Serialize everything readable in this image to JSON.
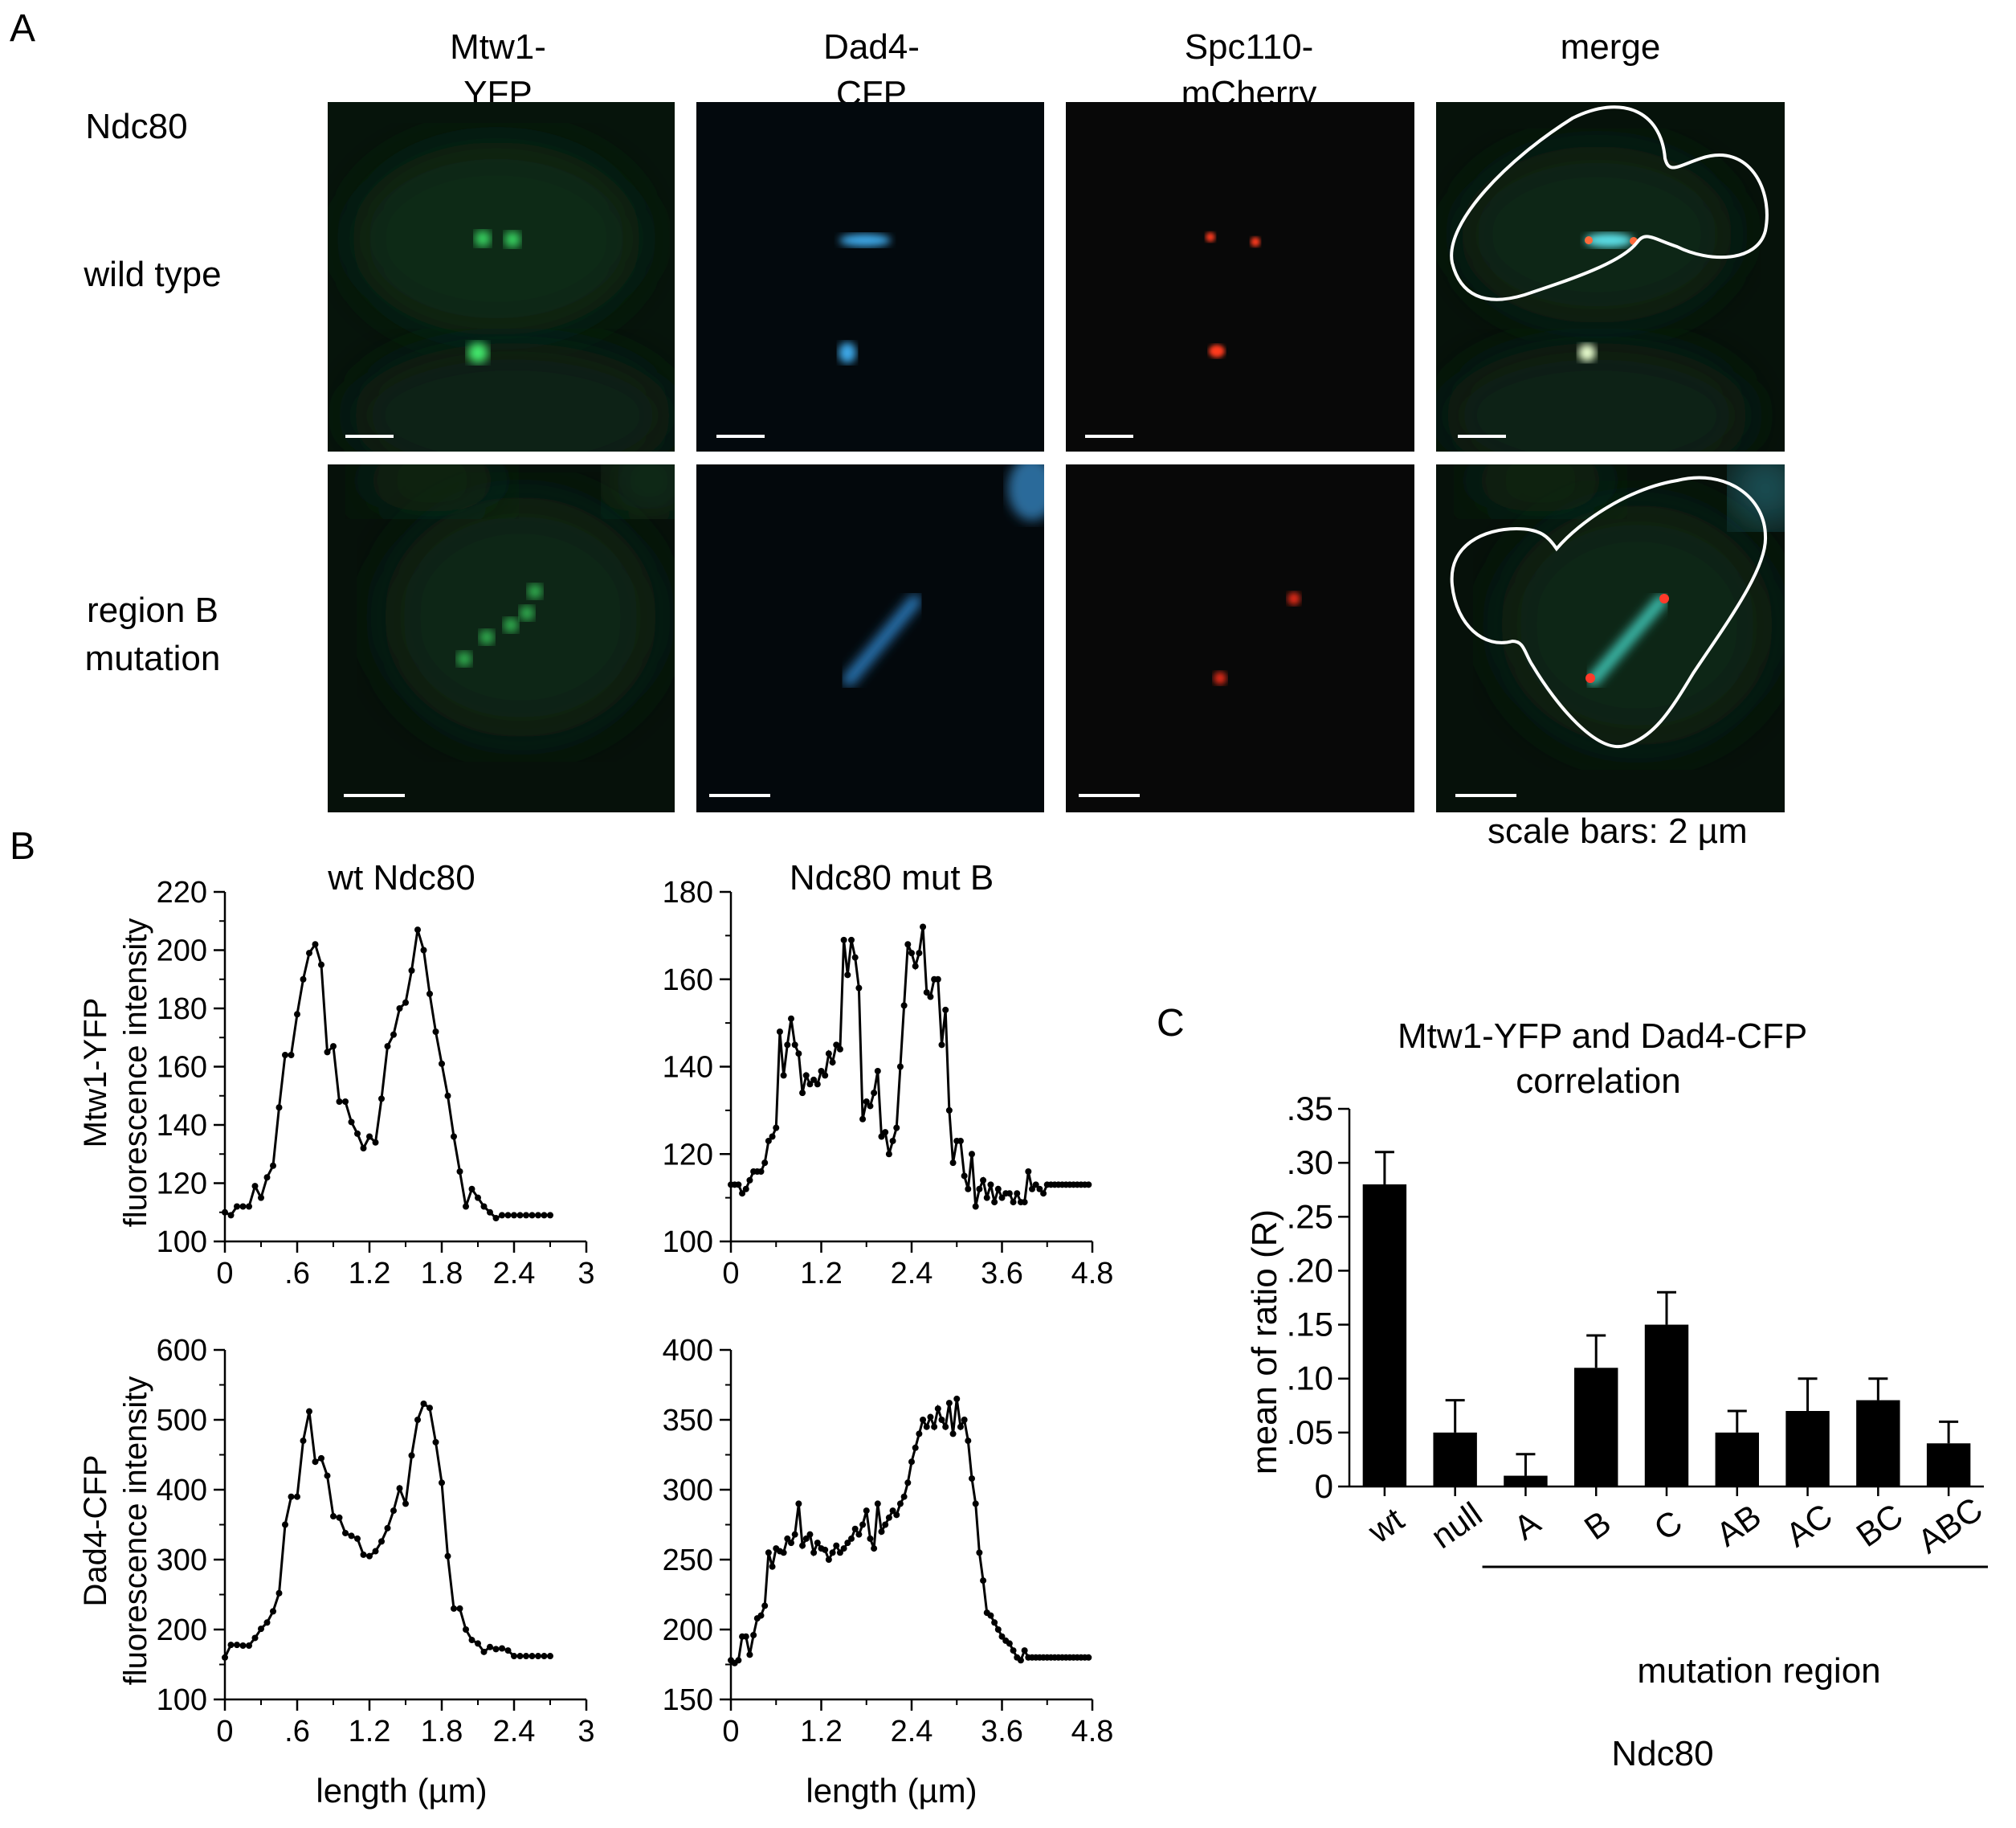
{
  "panel_a": {
    "letter": "A",
    "columns": [
      {
        "line1": "Mtw1-",
        "line2": "YFP"
      },
      {
        "line1": "Dad4-",
        "line2": "CFP"
      },
      {
        "line1": "Spc110-",
        "line2": "mCherry"
      },
      {
        "line1": "merge",
        "line2": ""
      }
    ],
    "row_group": "Ndc80",
    "rows": [
      {
        "line1": "wild type",
        "line2": ""
      },
      {
        "line1": "region B",
        "line2": "mutation"
      }
    ],
    "scale_note": "scale bars: 2 µm"
  },
  "panel_b": {
    "letter": "B",
    "col_titles": [
      "wt Ndc80",
      "Ndc80 mut B"
    ],
    "row_labels": [
      {
        "line1": "Mtw1-YFP",
        "line2": "fluorescence intensity"
      },
      {
        "line1": "Dad4-CFP",
        "line2": "fluorescence intensity"
      }
    ],
    "xlabel": "length (µm)"
  },
  "panel_c": {
    "letter": "C",
    "title_line1": "Mtw1-YFP and Dad4-CFP",
    "title_line2": "correlation",
    "ylabel": "mean of ratio (R)",
    "group_label": "mutation region",
    "footer": "Ndc80"
  },
  "chart_data": [
    {
      "type": "line",
      "title": "wt Ndc80",
      "ylabel": "Mtw1-YFP fluorescence intensity",
      "xlabel": "",
      "xlim": [
        0,
        3
      ],
      "ylim": [
        100,
        220
      ],
      "x_ticks": [
        0,
        0.6,
        1.2,
        1.8,
        2.4,
        3
      ],
      "x_tick_labels": [
        "0",
        ".6",
        "1.2",
        "1.8",
        "2.4",
        "3"
      ],
      "y_ticks": [
        100,
        120,
        140,
        160,
        180,
        200,
        220
      ],
      "y_tick_labels": [
        "100",
        "120",
        "140",
        "160",
        "180",
        "200",
        "220"
      ],
      "x": [
        0,
        0.05,
        0.1,
        0.15,
        0.2,
        0.25,
        0.3,
        0.35,
        0.4,
        0.45,
        0.5,
        0.55,
        0.6,
        0.65,
        0.7,
        0.75,
        0.8,
        0.85,
        0.9,
        0.95,
        1.0,
        1.05,
        1.1,
        1.15,
        1.2,
        1.25,
        1.3,
        1.35,
        1.4,
        1.45,
        1.5,
        1.55,
        1.6,
        1.65,
        1.7,
        1.75,
        1.8,
        1.85,
        1.9,
        1.95,
        2.0,
        2.05,
        2.1,
        2.15,
        2.2,
        2.25,
        2.3,
        2.35,
        2.4,
        2.45,
        2.5,
        2.55,
        2.6,
        2.65,
        2.7
      ],
      "y": [
        110,
        109,
        112,
        112,
        112,
        119,
        115,
        122,
        126,
        146,
        164,
        164,
        178,
        190,
        199,
        202,
        195,
        165,
        167,
        148,
        148,
        141,
        137,
        132,
        136,
        134,
        149,
        167,
        171,
        180,
        182,
        193,
        207,
        200,
        185,
        172,
        161,
        150,
        136,
        124,
        112,
        118,
        115,
        112,
        110,
        108,
        109,
        109,
        109,
        109,
        109,
        109,
        109,
        109,
        109
      ]
    },
    {
      "type": "line",
      "title": "Ndc80 mut B",
      "ylabel": "",
      "xlabel": "",
      "xlim": [
        0,
        4.8
      ],
      "ylim": [
        100,
        180
      ],
      "x_ticks": [
        0,
        1.2,
        2.4,
        3.6,
        4.8
      ],
      "x_tick_labels": [
        "0",
        "1.2",
        "2.4",
        "3.6",
        "4.8"
      ],
      "y_ticks": [
        100,
        120,
        140,
        160,
        180
      ],
      "y_tick_labels": [
        "100",
        "120",
        "140",
        "160",
        "180"
      ],
      "x": [
        0,
        0.05,
        0.1,
        0.15,
        0.2,
        0.25,
        0.3,
        0.35,
        0.4,
        0.45,
        0.5,
        0.55,
        0.6,
        0.65,
        0.7,
        0.75,
        0.8,
        0.85,
        0.9,
        0.95,
        1.0,
        1.05,
        1.1,
        1.15,
        1.2,
        1.25,
        1.3,
        1.35,
        1.4,
        1.45,
        1.5,
        1.55,
        1.6,
        1.65,
        1.7,
        1.75,
        1.8,
        1.85,
        1.9,
        1.95,
        2.0,
        2.05,
        2.1,
        2.15,
        2.2,
        2.25,
        2.3,
        2.35,
        2.4,
        2.45,
        2.5,
        2.55,
        2.6,
        2.65,
        2.7,
        2.75,
        2.8,
        2.85,
        2.9,
        2.95,
        3.0,
        3.05,
        3.1,
        3.15,
        3.2,
        3.25,
        3.3,
        3.35,
        3.4,
        3.45,
        3.5,
        3.55,
        3.6,
        3.65,
        3.7,
        3.75,
        3.8,
        3.85,
        3.9,
        3.95,
        4.0,
        4.05,
        4.1,
        4.15,
        4.2,
        4.25,
        4.3,
        4.35,
        4.4,
        4.45,
        4.5,
        4.55,
        4.6,
        4.65,
        4.7,
        4.75
      ],
      "y": [
        113,
        113,
        113,
        111,
        112,
        114,
        116,
        116,
        116,
        118,
        123,
        124,
        126,
        148,
        138,
        145,
        151,
        145,
        143,
        134,
        138,
        136,
        137,
        136,
        139,
        138,
        143,
        141,
        145,
        144,
        169,
        161,
        169,
        165,
        158,
        128,
        132,
        131,
        134,
        139,
        124,
        125,
        120,
        123,
        126,
        140,
        154,
        168,
        166,
        163,
        166,
        172,
        157,
        156,
        160,
        160,
        145,
        153,
        130,
        118,
        123,
        123,
        115,
        112,
        120,
        108,
        112,
        114,
        110,
        113,
        109,
        112,
        110,
        111,
        111,
        109,
        111,
        109,
        109,
        116,
        112,
        113,
        112,
        111,
        113,
        113,
        113,
        113,
        113,
        113,
        113,
        113,
        113,
        113,
        113,
        113
      ]
    },
    {
      "type": "line",
      "title": "",
      "ylabel": "Dad4-CFP fluorescence intensity",
      "xlabel": "length (µm)",
      "xlim": [
        0,
        3
      ],
      "ylim": [
        100,
        600
      ],
      "x_ticks": [
        0,
        0.6,
        1.2,
        1.8,
        2.4,
        3
      ],
      "x_tick_labels": [
        "0",
        ".6",
        "1.2",
        "1.8",
        "2.4",
        "3"
      ],
      "y_ticks": [
        100,
        200,
        300,
        400,
        500,
        600
      ],
      "y_tick_labels": [
        "100",
        "200",
        "300",
        "400",
        "500",
        "600"
      ],
      "x": [
        0,
        0.05,
        0.1,
        0.15,
        0.2,
        0.25,
        0.3,
        0.35,
        0.4,
        0.45,
        0.5,
        0.55,
        0.6,
        0.65,
        0.7,
        0.75,
        0.8,
        0.85,
        0.9,
        0.95,
        1.0,
        1.05,
        1.1,
        1.15,
        1.2,
        1.25,
        1.3,
        1.35,
        1.4,
        1.45,
        1.5,
        1.55,
        1.6,
        1.65,
        1.7,
        1.75,
        1.8,
        1.85,
        1.9,
        1.95,
        2.0,
        2.05,
        2.1,
        2.15,
        2.2,
        2.25,
        2.3,
        2.35,
        2.4,
        2.45,
        2.5,
        2.55,
        2.6,
        2.65,
        2.7
      ],
      "y": [
        160,
        178,
        178,
        177,
        177,
        188,
        201,
        210,
        226,
        252,
        350,
        390,
        390,
        470,
        512,
        440,
        445,
        420,
        362,
        360,
        338,
        334,
        330,
        307,
        305,
        312,
        326,
        345,
        370,
        402,
        380,
        449,
        500,
        523,
        517,
        468,
        410,
        305,
        230,
        230,
        200,
        185,
        180,
        168,
        175,
        172,
        173,
        170,
        162,
        162,
        162,
        162,
        162,
        162,
        162
      ]
    },
    {
      "type": "line",
      "title": "",
      "ylabel": "",
      "xlabel": "length (µm)",
      "xlim": [
        0,
        4.8
      ],
      "ylim": [
        150,
        400
      ],
      "x_ticks": [
        0,
        1.2,
        2.4,
        3.6,
        4.8
      ],
      "x_tick_labels": [
        "0",
        "1.2",
        "2.4",
        "3.6",
        "4.8"
      ],
      "y_ticks": [
        150,
        200,
        250,
        300,
        350,
        400
      ],
      "y_tick_labels": [
        "150",
        "200",
        "250",
        "300",
        "350",
        "400"
      ],
      "x": [
        0,
        0.05,
        0.1,
        0.15,
        0.2,
        0.25,
        0.3,
        0.35,
        0.4,
        0.45,
        0.5,
        0.55,
        0.6,
        0.65,
        0.7,
        0.75,
        0.8,
        0.85,
        0.9,
        0.95,
        1.0,
        1.05,
        1.1,
        1.15,
        1.2,
        1.25,
        1.3,
        1.35,
        1.4,
        1.45,
        1.5,
        1.55,
        1.6,
        1.65,
        1.7,
        1.75,
        1.8,
        1.85,
        1.9,
        1.95,
        2.0,
        2.05,
        2.1,
        2.15,
        2.2,
        2.25,
        2.3,
        2.35,
        2.4,
        2.45,
        2.5,
        2.55,
        2.6,
        2.65,
        2.7,
        2.75,
        2.8,
        2.85,
        2.9,
        2.95,
        3.0,
        3.05,
        3.1,
        3.15,
        3.2,
        3.25,
        3.3,
        3.35,
        3.4,
        3.45,
        3.5,
        3.55,
        3.6,
        3.65,
        3.7,
        3.75,
        3.8,
        3.85,
        3.9,
        3.95,
        4.0,
        4.05,
        4.1,
        4.15,
        4.2,
        4.25,
        4.3,
        4.35,
        4.4,
        4.45,
        4.5,
        4.55,
        4.6,
        4.65,
        4.7,
        4.75
      ],
      "y": [
        178,
        176,
        178,
        195,
        195,
        182,
        196,
        208,
        210,
        217,
        255,
        245,
        258,
        256,
        255,
        265,
        262,
        268,
        290,
        260,
        265,
        268,
        255,
        262,
        258,
        257,
        250,
        255,
        260,
        255,
        258,
        262,
        265,
        272,
        268,
        275,
        285,
        265,
        258,
        290,
        270,
        275,
        280,
        285,
        282,
        290,
        295,
        305,
        320,
        330,
        340,
        350,
        345,
        352,
        345,
        358,
        350,
        345,
        362,
        340,
        365,
        345,
        350,
        335,
        308,
        290,
        255,
        235,
        212,
        210,
        205,
        200,
        195,
        192,
        190,
        185,
        180,
        178,
        185,
        180,
        180,
        180,
        180,
        180,
        180,
        180,
        180,
        180,
        180,
        180,
        180,
        180,
        180,
        180,
        180,
        180
      ]
    },
    {
      "type": "bar",
      "title": "Mtw1-YFP and Dad4-CFP correlation",
      "ylabel": "mean of ratio (R)",
      "xlabel": "Ndc80",
      "categories": [
        "wt",
        "null",
        "A",
        "B",
        "C",
        "AB",
        "AC",
        "BC",
        "ABC"
      ],
      "values": [
        0.28,
        0.05,
        0.01,
        0.11,
        0.15,
        0.05,
        0.07,
        0.08,
        0.04
      ],
      "error": [
        0.03,
        0.03,
        0.02,
        0.03,
        0.03,
        0.02,
        0.03,
        0.02,
        0.02
      ],
      "ylim": [
        0,
        0.35
      ],
      "y_ticks": [
        0,
        0.05,
        0.1,
        0.15,
        0.2,
        0.25,
        0.3,
        0.35
      ],
      "y_tick_labels": [
        "0",
        ".05",
        ".10",
        ".15",
        ".20",
        ".25",
        ".30",
        ".35"
      ],
      "group_label": "mutation region"
    }
  ]
}
